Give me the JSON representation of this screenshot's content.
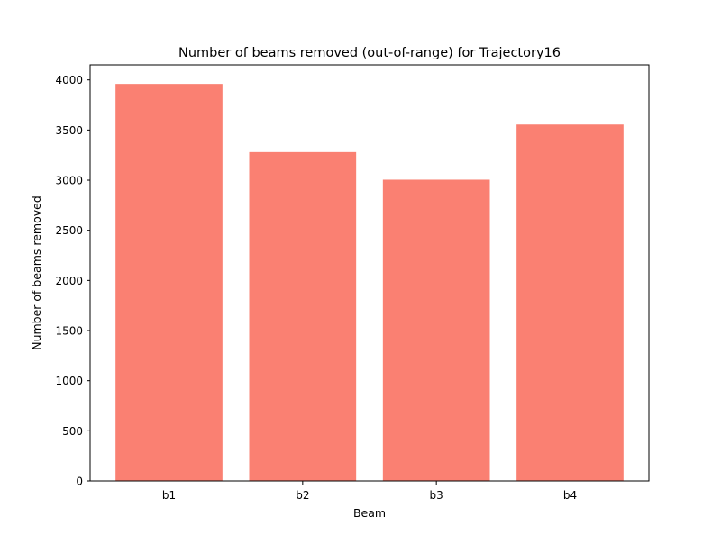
{
  "chart_data": {
    "type": "bar",
    "title": "Number of beams removed (out-of-range) for Trajectory16",
    "xlabel": "Beam",
    "ylabel": "Number of beams removed",
    "categories": [
      "b1",
      "b2",
      "b3",
      "b4"
    ],
    "values": [
      3960,
      3280,
      3005,
      3555
    ],
    "ylim": [
      0,
      4150
    ],
    "yticks": [
      0,
      500,
      1000,
      1500,
      2000,
      2500,
      3000,
      3500,
      4000
    ],
    "grid": false,
    "legend": "none",
    "bar_color": "#fa8072"
  }
}
